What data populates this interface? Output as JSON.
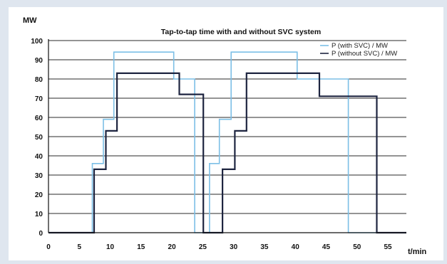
{
  "chart_data": {
    "type": "line",
    "title": "Tap-to-tap time with and without SVC system",
    "ylabel": "MW",
    "xlabel": "t/min",
    "xlim": [
      0,
      58
    ],
    "ylim": [
      0,
      100
    ],
    "x_ticks": [
      0,
      5,
      10,
      15,
      20,
      25,
      30,
      35,
      40,
      45,
      50,
      55
    ],
    "y_ticks": [
      0,
      10,
      20,
      30,
      40,
      50,
      60,
      70,
      80,
      90,
      100
    ],
    "grid": true,
    "legend_position": "top-right",
    "step": true,
    "series": [
      {
        "name": "P (with SVC) / MW",
        "color": "#7cbfe6",
        "points": [
          [
            0,
            0
          ],
          [
            7.1,
            0
          ],
          [
            7.1,
            36
          ],
          [
            8.9,
            36
          ],
          [
            8.9,
            59
          ],
          [
            10.6,
            59
          ],
          [
            10.6,
            94
          ],
          [
            20.3,
            94
          ],
          [
            20.3,
            80
          ],
          [
            22.8,
            80
          ],
          [
            22.8,
            80
          ],
          [
            23.7,
            80
          ],
          [
            23.7,
            0
          ],
          [
            26.1,
            0
          ],
          [
            26.1,
            36
          ],
          [
            27.7,
            36
          ],
          [
            27.7,
            59
          ],
          [
            29.6,
            59
          ],
          [
            29.6,
            94
          ],
          [
            40.3,
            94
          ],
          [
            40.3,
            80
          ],
          [
            48.6,
            80
          ],
          [
            48.6,
            0
          ],
          [
            58,
            0
          ]
        ]
      },
      {
        "name": "P (without SVC) / MW",
        "color": "#1e2540",
        "points": [
          [
            0,
            0
          ],
          [
            7.4,
            0
          ],
          [
            7.4,
            33
          ],
          [
            9.3,
            33
          ],
          [
            9.3,
            53
          ],
          [
            11.1,
            53
          ],
          [
            11.1,
            83
          ],
          [
            21.2,
            83
          ],
          [
            21.2,
            72
          ],
          [
            24.5,
            72
          ],
          [
            24.5,
            72
          ],
          [
            25.1,
            72
          ],
          [
            25.1,
            0
          ],
          [
            28.2,
            0
          ],
          [
            28.2,
            33
          ],
          [
            30.2,
            33
          ],
          [
            30.2,
            53
          ],
          [
            32.1,
            53
          ],
          [
            32.1,
            83
          ],
          [
            43.9,
            83
          ],
          [
            43.9,
            71
          ],
          [
            53.2,
            71
          ],
          [
            53.2,
            0
          ],
          [
            58,
            0
          ]
        ]
      }
    ]
  }
}
